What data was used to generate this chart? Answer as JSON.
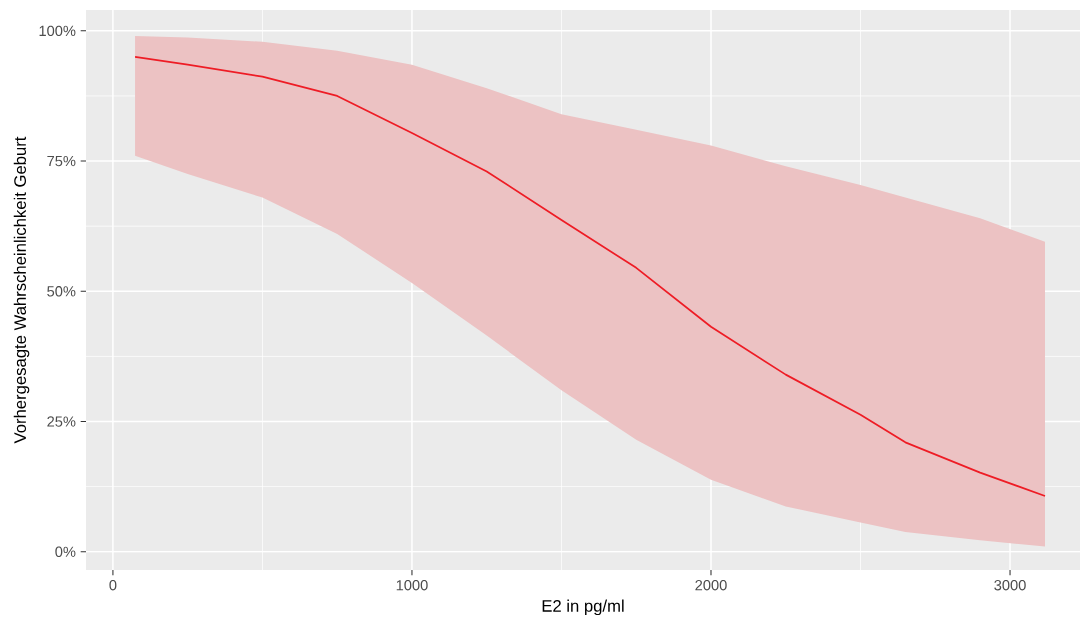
{
  "chart_data": {
    "type": "line",
    "xlabel": "E2 in pg/ml",
    "ylabel": "Vorhergesagte Wahrscheinlichkeit Geburt",
    "x": [
      74,
      250,
      500,
      750,
      1000,
      1250,
      1500,
      1750,
      2000,
      2250,
      2500,
      2650,
      2900,
      3117
    ],
    "series": [
      {
        "color": "#ee1c25",
        "values": [
          95.0,
          93.5,
          91.2,
          87.5,
          80.4,
          73,
          63.7,
          54.5,
          43.2,
          34,
          26.3,
          21,
          15.2,
          10.7
        ],
        "lower": [
          76,
          72.5,
          68,
          61,
          51.6,
          41.5,
          31,
          21.5,
          13.8,
          8.7,
          5.6,
          3.8,
          2.2,
          1.0
        ],
        "upper": [
          99,
          98.7,
          97.9,
          96.2,
          93.5,
          89,
          84,
          81,
          78,
          74,
          70.4,
          68,
          64,
          59.5
        ]
      }
    ],
    "xlim": [
      -90,
      3234
    ],
    "ylim": [
      -3.5,
      104
    ],
    "xticks": [
      0,
      1000,
      2000,
      3000
    ],
    "yticks": [
      {
        "value": 0,
        "label": "0%"
      },
      {
        "value": 25,
        "label": "25%"
      },
      {
        "value": 50,
        "label": "50%"
      },
      {
        "value": 75,
        "label": "75%"
      },
      {
        "value": 100,
        "label": "100%"
      }
    ],
    "grid": true,
    "marker": "none",
    "line_style": "solid"
  }
}
